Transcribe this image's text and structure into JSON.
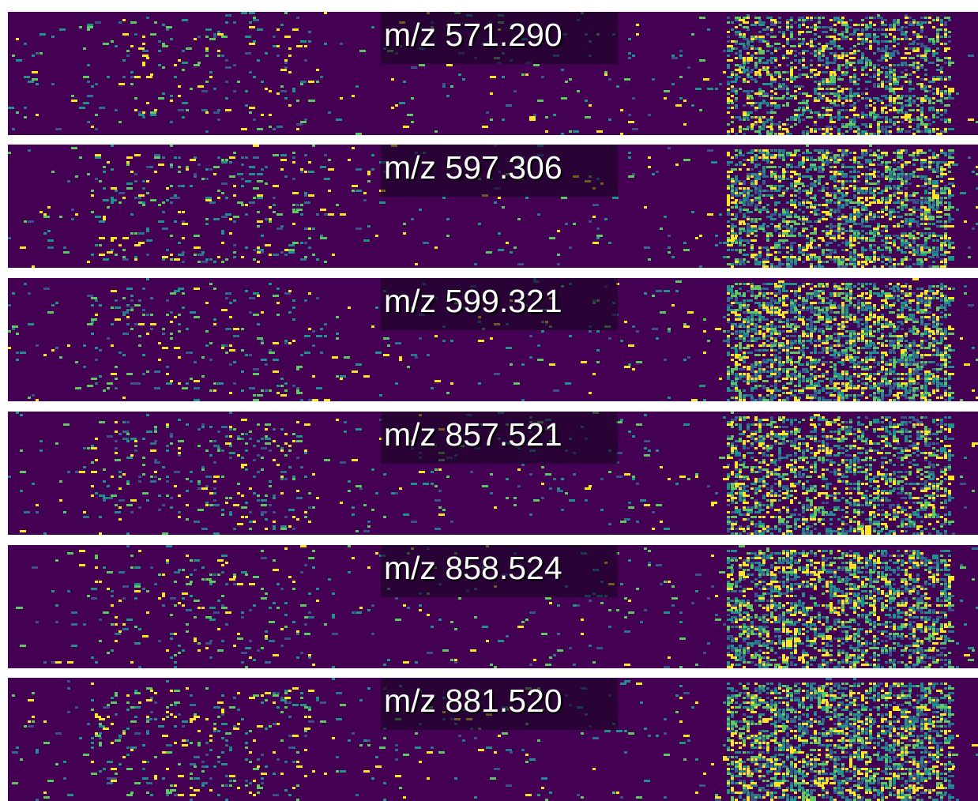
{
  "panels": [
    {
      "label": "m/z 571.290"
    },
    {
      "label": "m/z 597.306"
    },
    {
      "label": "m/z 599.321"
    },
    {
      "label": "m/z 857.521"
    },
    {
      "label": "m/z 858.524"
    },
    {
      "label": "m/z 881.520"
    }
  ]
}
